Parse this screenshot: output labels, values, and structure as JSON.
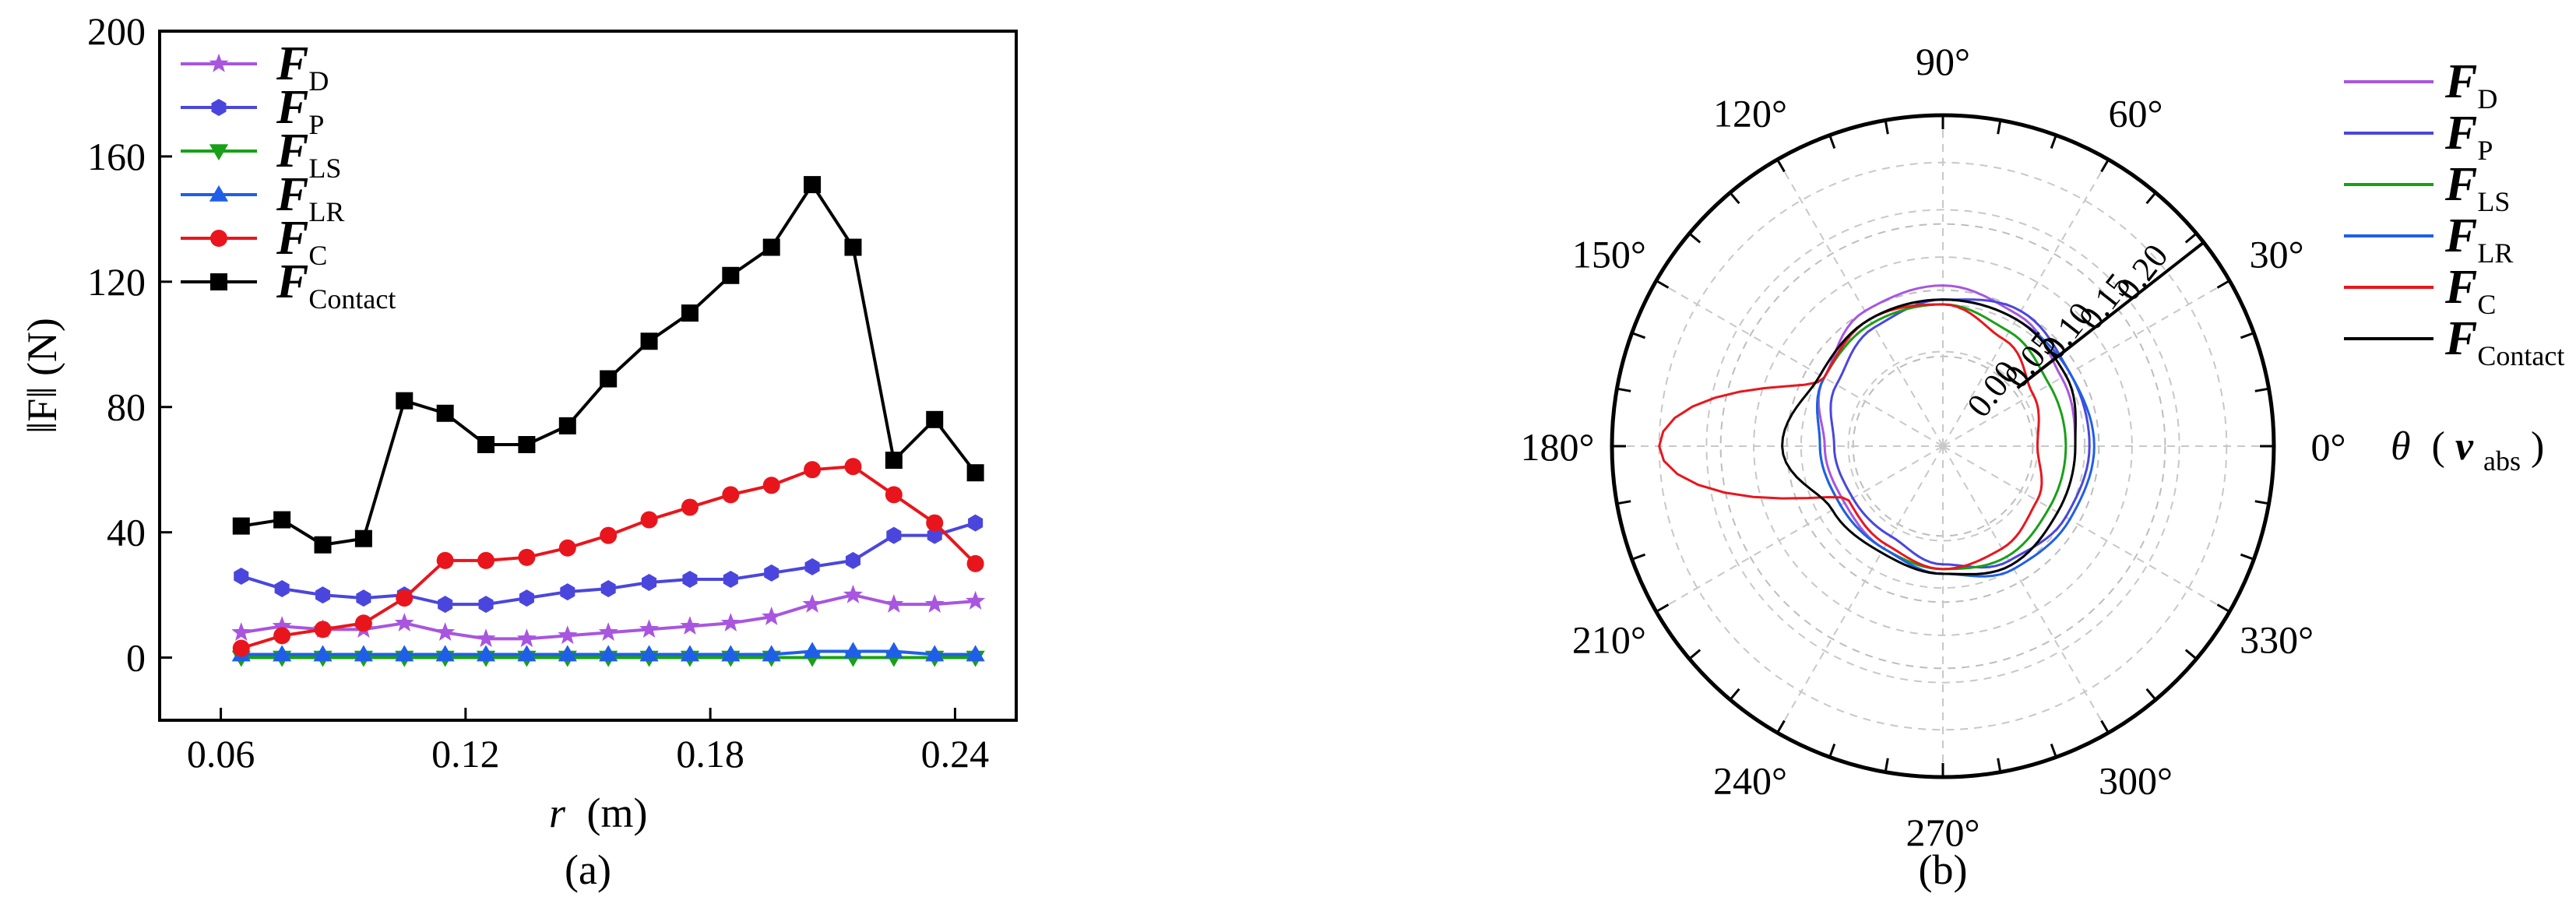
{
  "chart_data": [
    {
      "type": "line",
      "caption": "(a)",
      "xlabel_var": "r",
      "xlabel_unit": "(m)",
      "ylabel": "‖F‖ (N)",
      "xlim": [
        0.045,
        0.255
      ],
      "ylim": [
        -20,
        200
      ],
      "xticks": [
        "0.06",
        "0.12",
        "0.18",
        "0.24"
      ],
      "xtick_values": [
        0.06,
        0.12,
        0.18,
        0.24
      ],
      "yticks": [
        "0",
        "40",
        "80",
        "120",
        "160",
        "200"
      ],
      "ytick_values": [
        0,
        40,
        80,
        120,
        160,
        200
      ],
      "x": [
        0.065,
        0.075,
        0.085,
        0.095,
        0.105,
        0.115,
        0.125,
        0.135,
        0.145,
        0.155,
        0.165,
        0.175,
        0.185,
        0.195,
        0.205,
        0.215,
        0.225,
        0.235,
        0.245
      ],
      "legend_position": "top-left",
      "series": [
        {
          "name": "F",
          "sub": "D",
          "color": "#a855e0",
          "marker": "star",
          "values": [
            8,
            10,
            9,
            9,
            11,
            8,
            6,
            6,
            7,
            8,
            9,
            10,
            11,
            13,
            17,
            20,
            17,
            17,
            18
          ]
        },
        {
          "name": "F",
          "sub": "P",
          "color": "#4a46dd",
          "marker": "hexagon",
          "values": [
            26,
            22,
            20,
            19,
            20,
            17,
            17,
            19,
            21,
            22,
            24,
            25,
            25,
            27,
            29,
            31,
            39,
            39,
            43
          ]
        },
        {
          "name": "F",
          "sub": "LS",
          "color": "#18a018",
          "marker": "triangle-down",
          "values": [
            0,
            0,
            0,
            0,
            0,
            0,
            0,
            0,
            0,
            0,
            0,
            0,
            0,
            0,
            0,
            0,
            0,
            0,
            0
          ]
        },
        {
          "name": "F",
          "sub": "LR",
          "color": "#1f5fe8",
          "marker": "triangle-up",
          "values": [
            1,
            1,
            1,
            1,
            1,
            1,
            1,
            1,
            1,
            1,
            1,
            1,
            1,
            1,
            2,
            2,
            2,
            1,
            1
          ]
        },
        {
          "name": "F",
          "sub": "C",
          "color": "#e8161c",
          "marker": "circle",
          "values": [
            3,
            7,
            9,
            11,
            19,
            31,
            31,
            32,
            35,
            39,
            44,
            48,
            52,
            55,
            60,
            61,
            52,
            43,
            30
          ]
        },
        {
          "name": "F",
          "sub": "Contact",
          "color": "#000000",
          "marker": "square",
          "values": [
            42,
            44,
            36,
            38,
            82,
            78,
            68,
            68,
            74,
            89,
            101,
            110,
            122,
            131,
            151,
            131,
            63,
            76,
            59
          ]
        }
      ]
    },
    {
      "type": "polar-line",
      "caption": "(b)",
      "angle_label": "θ",
      "angle_label_var": "v",
      "angle_label_sub": "abs",
      "angle_ticks": [
        "0°",
        "30°",
        "60°",
        "90°",
        "120°",
        "150°",
        "180°",
        "210°",
        "240°",
        "270°",
        "300°",
        "330°"
      ],
      "angle_values": [
        0,
        30,
        60,
        90,
        120,
        150,
        180,
        210,
        240,
        270,
        300,
        330
      ],
      "radial_ticks": [
        "0.00",
        "0.05",
        "0.10",
        "0.15",
        "0.20"
      ],
      "radial_values": [
        0,
        0.05,
        0.1,
        0.15,
        0.2
      ],
      "rlim": [
        -0.1,
        0.25
      ],
      "grid": true,
      "legend_position": "right",
      "series": [
        {
          "name": "F",
          "sub": "D",
          "color": "#a855e0",
          "r": [
            0.04,
            0.045,
            0.06,
            0.07,
            0.065,
            0.045,
            0.025,
            0.02,
            0.025,
            0.035,
            0.045,
            0.04
          ]
        },
        {
          "name": "F",
          "sub": "P",
          "color": "#4a46dd",
          "r": [
            0.055,
            0.055,
            0.065,
            0.055,
            0.045,
            0.03,
            0.015,
            0.01,
            0.01,
            0.025,
            0.04,
            0.05
          ]
        },
        {
          "name": "F",
          "sub": "LS",
          "color": "#18a018",
          "r": [
            0.03,
            0.03,
            0.04,
            0.05,
            0.05,
            0.045,
            0.03,
            0.025,
            0.025,
            0.03,
            0.035,
            0.03
          ]
        },
        {
          "name": "F",
          "sub": "LR",
          "color": "#1f5fe8",
          "r": [
            0.06,
            0.055,
            0.055,
            0.055,
            0.055,
            0.045,
            0.03,
            0.025,
            0.025,
            0.035,
            0.05,
            0.055
          ]
        },
        {
          "name": "F",
          "sub": "C",
          "color": "#e8161c",
          "r": [
            0.0,
            0.01,
            0.03,
            0.05,
            0.055,
            0.045,
            0.2,
            0.015,
            0.02,
            0.03,
            0.025,
            0.015
          ]
        },
        {
          "name": "F",
          "sub": "Contact",
          "color": "#000000",
          "r": [
            0.04,
            0.05,
            0.055,
            0.055,
            0.055,
            0.05,
            0.07,
            0.035,
            0.03,
            0.035,
            0.045,
            0.04
          ]
        }
      ]
    }
  ]
}
